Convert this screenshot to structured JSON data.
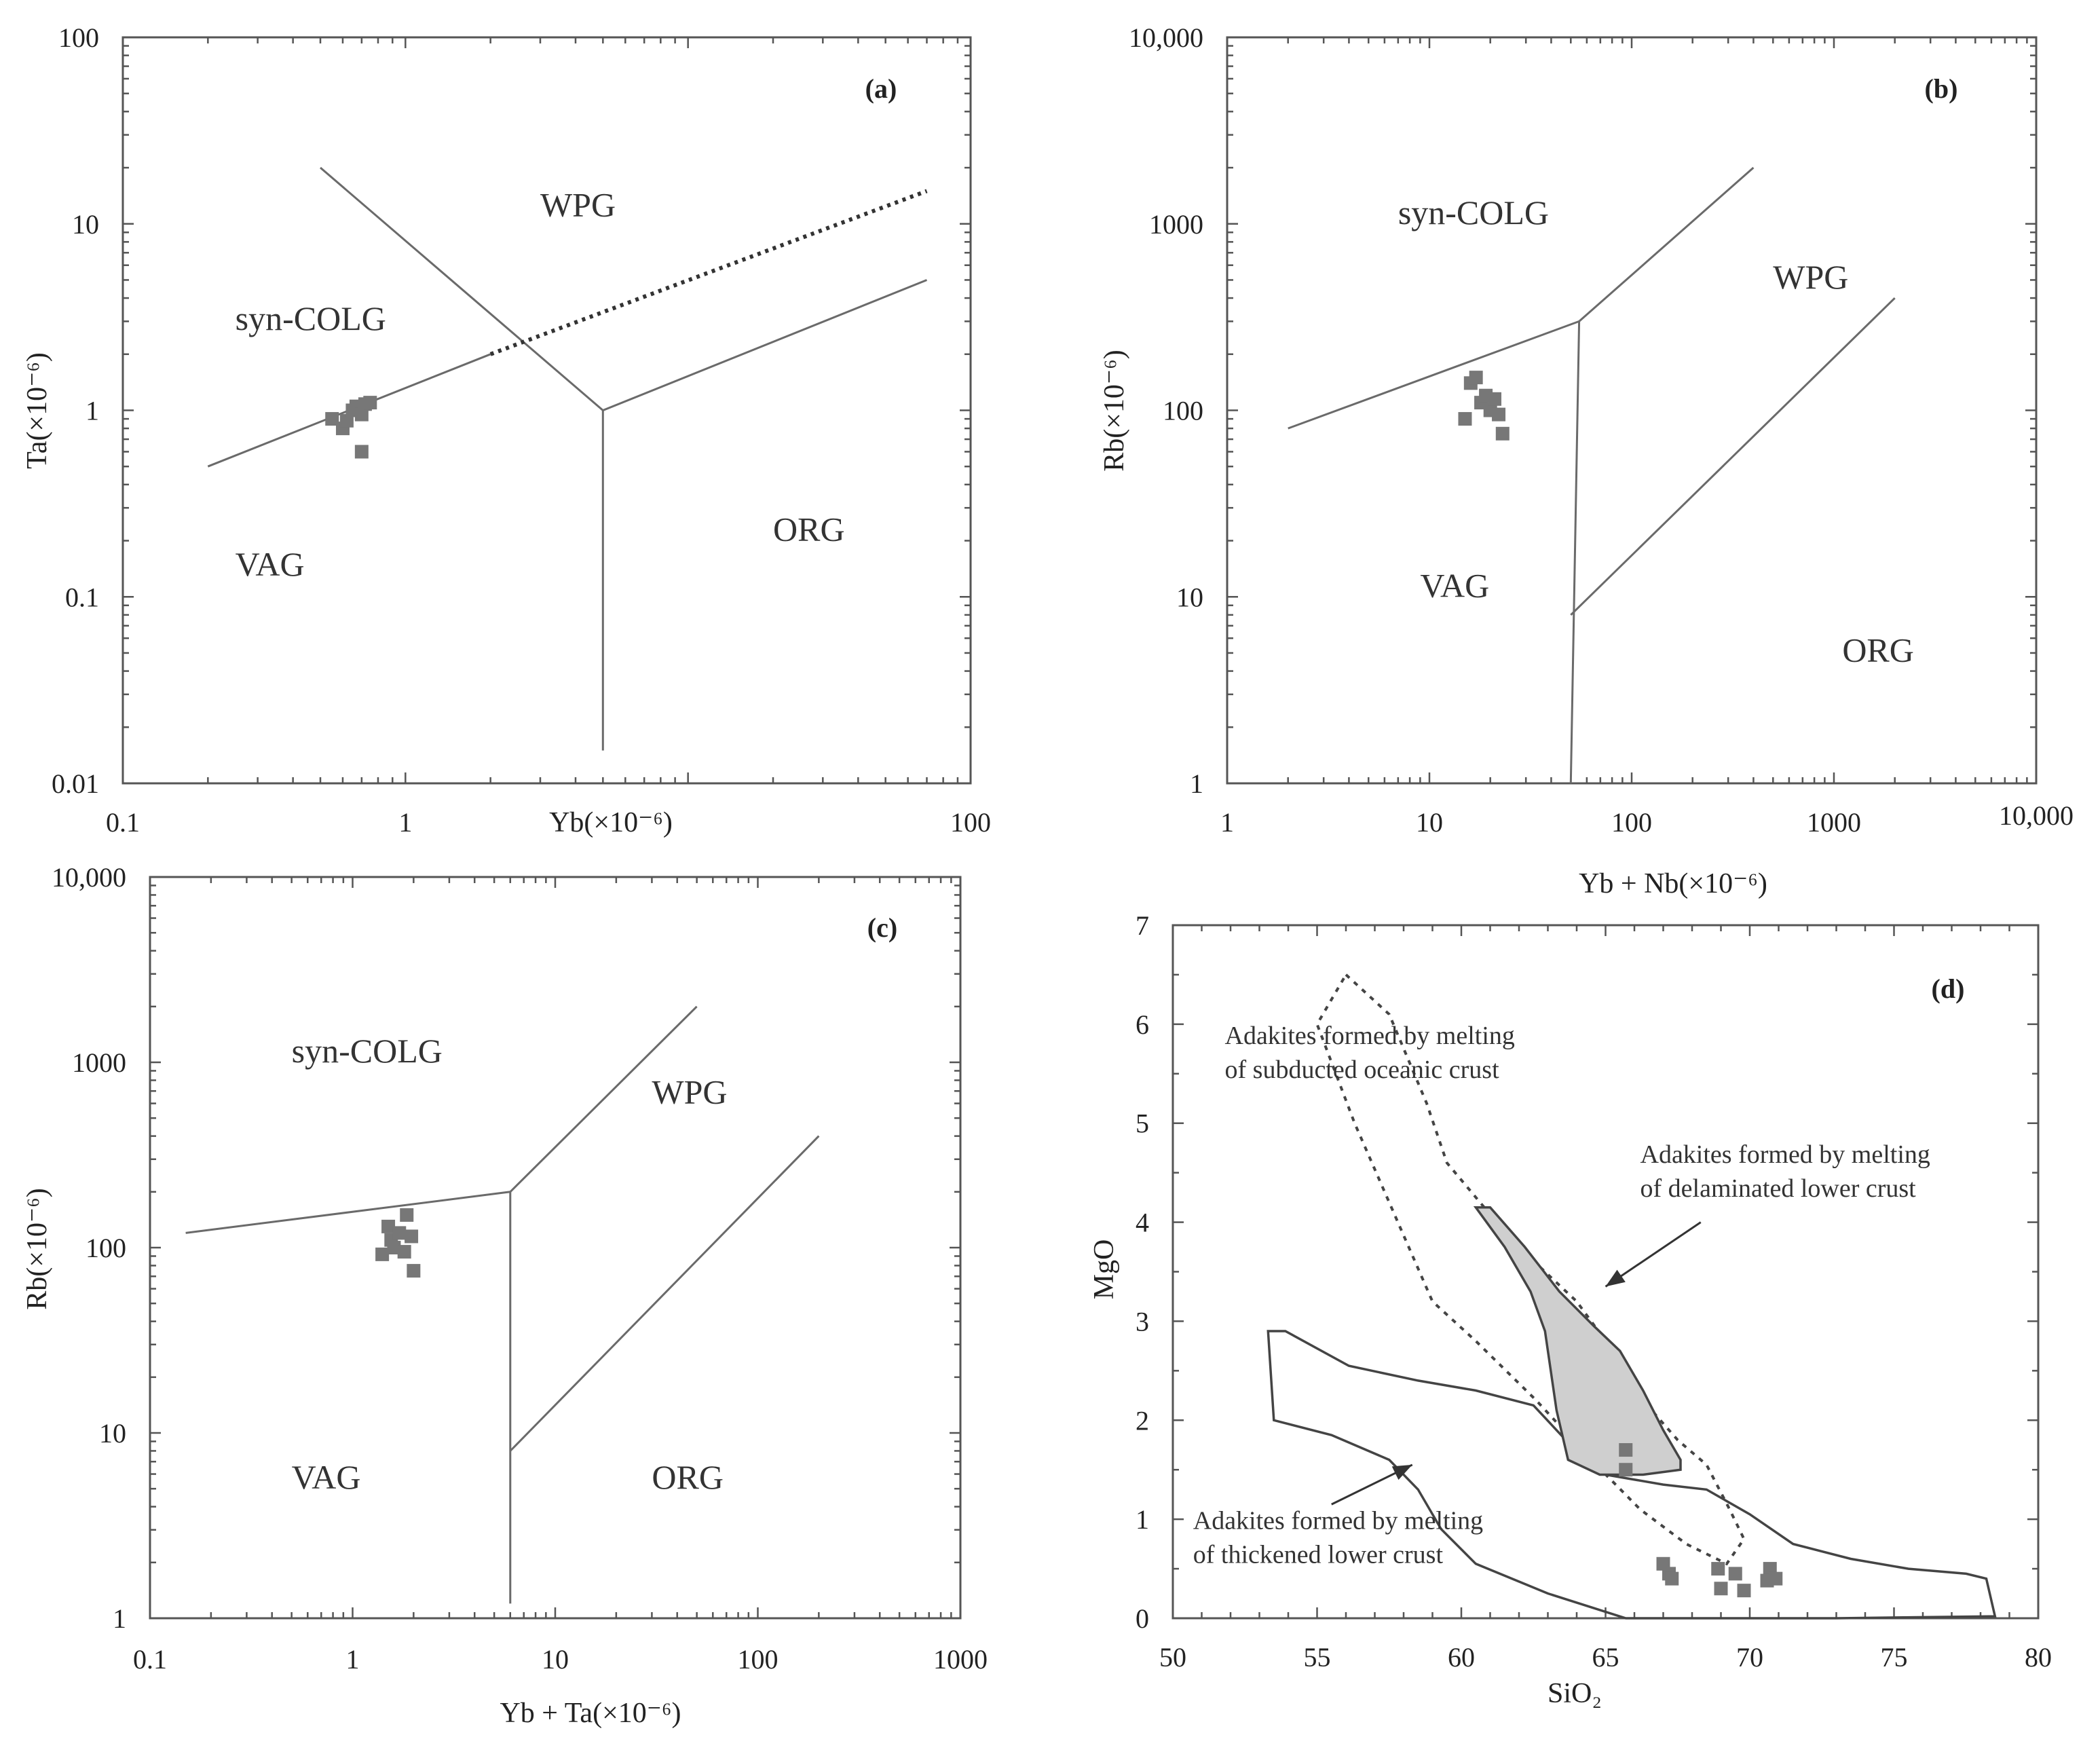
{
  "chart_data": [
    {
      "id": "a",
      "type": "scatter",
      "panel_label": "(a)",
      "xlabel": "Yb(×10⁻⁶)",
      "ylabel": "Ta(×10⁻⁶)",
      "xscale": "log",
      "yscale": "log",
      "xlim": [
        0.1,
        100
      ],
      "ylim": [
        0.01,
        100
      ],
      "x_ticks": [
        0.1,
        1,
        10,
        100
      ],
      "x_tick_labels": [
        "0.1",
        "1",
        "",
        "100"
      ],
      "y_ticks": [
        0.01,
        0.1,
        1,
        10,
        100
      ],
      "y_tick_labels": [
        "0.01",
        "0.1",
        "1",
        "10",
        "100"
      ],
      "fields": [
        {
          "label": "WPG",
          "x": 3.0,
          "y": 11
        },
        {
          "label": "syn-COLG",
          "x": 0.25,
          "y": 2.7
        },
        {
          "label": "VAG",
          "x": 0.25,
          "y": 0.13
        },
        {
          "label": "ORG",
          "x": 20,
          "y": 0.2
        }
      ],
      "boundaries": [
        {
          "style": "solid",
          "points": [
            [
              0.2,
              0.5
            ],
            [
              2.0,
              2.0
            ]
          ]
        },
        {
          "style": "solid",
          "points": [
            [
              0.5,
              20
            ],
            [
              5.0,
              1.0
            ]
          ]
        },
        {
          "style": "solid",
          "points": [
            [
              5.0,
              1.0
            ],
            [
              70,
              5.0
            ]
          ]
        },
        {
          "style": "solid",
          "points": [
            [
              5.0,
              1.0
            ],
            [
              5.0,
              0.015
            ]
          ]
        },
        {
          "style": "dotted",
          "points": [
            [
              2.0,
              2.0
            ],
            [
              70,
              15
            ]
          ]
        }
      ],
      "samples": [
        {
          "x": 0.55,
          "y": 0.9
        },
        {
          "x": 0.6,
          "y": 0.8
        },
        {
          "x": 0.62,
          "y": 0.88
        },
        {
          "x": 0.65,
          "y": 1.0
        },
        {
          "x": 0.67,
          "y": 1.05
        },
        {
          "x": 0.7,
          "y": 0.95
        },
        {
          "x": 0.72,
          "y": 1.08
        },
        {
          "x": 0.75,
          "y": 1.1
        },
        {
          "x": 0.7,
          "y": 0.6
        }
      ]
    },
    {
      "id": "b",
      "type": "scatter",
      "panel_label": "(b)",
      "xlabel": "Yb + Nb(×10⁻⁶)",
      "ylabel": "Rb(×10⁻⁶)",
      "xscale": "log",
      "yscale": "log",
      "xlim": [
        1,
        10000
      ],
      "ylim": [
        1,
        10000
      ],
      "x_ticks": [
        1,
        10,
        100,
        1000,
        10000
      ],
      "x_tick_labels": [
        "1",
        "10",
        "100",
        "1000",
        "10,000"
      ],
      "y_ticks": [
        1,
        10,
        100,
        1000,
        10000
      ],
      "y_tick_labels": [
        "1",
        "10",
        "100",
        "1000",
        "10,000"
      ],
      "fields": [
        {
          "label": "syn-COLG",
          "x": 7,
          "y": 1000
        },
        {
          "label": "WPG",
          "x": 500,
          "y": 450
        },
        {
          "label": "VAG",
          "x": 9,
          "y": 10
        },
        {
          "label": "ORG",
          "x": 1100,
          "y": 4.5
        }
      ],
      "boundaries": [
        {
          "style": "solid",
          "points": [
            [
              2,
              80
            ],
            [
              55,
              300
            ]
          ]
        },
        {
          "style": "solid",
          "points": [
            [
              55,
              300
            ],
            [
              400,
              2000
            ]
          ]
        },
        {
          "style": "solid",
          "points": [
            [
              55,
              300
            ],
            [
              50,
              1
            ]
          ]
        },
        {
          "style": "solid",
          "points": [
            [
              50,
              8
            ],
            [
              2000,
              400
            ]
          ]
        }
      ],
      "samples": [
        {
          "x": 15,
          "y": 90
        },
        {
          "x": 16,
          "y": 140
        },
        {
          "x": 17,
          "y": 150
        },
        {
          "x": 18,
          "y": 110
        },
        {
          "x": 19,
          "y": 120
        },
        {
          "x": 20,
          "y": 100
        },
        {
          "x": 21,
          "y": 115
        },
        {
          "x": 22,
          "y": 95
        },
        {
          "x": 23,
          "y": 75
        }
      ]
    },
    {
      "id": "c",
      "type": "scatter",
      "panel_label": "(c)",
      "xlabel": "Yb + Ta(×10⁻⁶)",
      "ylabel": "Rb(×10⁻⁶)",
      "xscale": "log",
      "yscale": "log",
      "xlim": [
        0.1,
        1000
      ],
      "ylim": [
        1,
        10000
      ],
      "x_ticks": [
        0.1,
        1,
        10,
        100,
        1000
      ],
      "x_tick_labels": [
        "0.1",
        "1",
        "10",
        "100",
        "1000"
      ],
      "y_ticks": [
        1,
        10,
        100,
        1000,
        10000
      ],
      "y_tick_labels": [
        "1",
        "10",
        "100",
        "1000",
        "10,000"
      ],
      "fields": [
        {
          "label": "syn-COLG",
          "x": 0.5,
          "y": 1000
        },
        {
          "label": "WPG",
          "x": 30,
          "y": 600
        },
        {
          "label": "VAG",
          "x": 0.5,
          "y": 5
        },
        {
          "label": "ORG",
          "x": 30,
          "y": 5
        }
      ],
      "boundaries": [
        {
          "style": "solid",
          "points": [
            [
              0.15,
              120
            ],
            [
              6,
              200
            ]
          ]
        },
        {
          "style": "solid",
          "points": [
            [
              6,
              200
            ],
            [
              50,
              2000
            ]
          ]
        },
        {
          "style": "solid",
          "points": [
            [
              6,
              200
            ],
            [
              6,
              1.2
            ]
          ]
        },
        {
          "style": "solid",
          "points": [
            [
              6,
              8
            ],
            [
              200,
              400
            ]
          ]
        }
      ],
      "samples": [
        {
          "x": 1.4,
          "y": 92
        },
        {
          "x": 1.5,
          "y": 130
        },
        {
          "x": 1.55,
          "y": 110
        },
        {
          "x": 1.6,
          "y": 100
        },
        {
          "x": 1.7,
          "y": 120
        },
        {
          "x": 1.8,
          "y": 95
        },
        {
          "x": 1.85,
          "y": 150
        },
        {
          "x": 1.95,
          "y": 115
        },
        {
          "x": 2.0,
          "y": 75
        }
      ]
    },
    {
      "id": "d",
      "type": "scatter",
      "panel_label": "(d)",
      "xlabel": "SiO₂",
      "ylabel": "MgO",
      "xscale": "linear",
      "yscale": "linear",
      "xlim": [
        50,
        80
      ],
      "ylim": [
        0,
        7
      ],
      "x_ticks": [
        50,
        55,
        60,
        65,
        70,
        75,
        80
      ],
      "x_tick_labels": [
        "50",
        "55",
        "60",
        "65",
        "70",
        "75",
        "80"
      ],
      "y_ticks": [
        0,
        1,
        2,
        3,
        4,
        5,
        6,
        7
      ],
      "y_tick_labels": [
        "0",
        "1",
        "2",
        "3",
        "4",
        "5",
        "6",
        "7"
      ],
      "annotations": [
        {
          "lines": [
            "Adakites formed by melting",
            "of subducted oceanic crust"
          ],
          "x": 51.8,
          "y": 5.8
        },
        {
          "lines": [
            "Adakites formed by melting",
            "of delaminated lower crust"
          ],
          "x": 66.2,
          "y": 4.6
        },
        {
          "lines": [
            "Adakites formed by melting",
            "of thickened lower crust"
          ],
          "x": 50.7,
          "y": 0.9
        }
      ],
      "arrows": [
        {
          "from": [
            68.3,
            4.0
          ],
          "to": [
            65.0,
            3.35
          ]
        },
        {
          "from": [
            55.5,
            1.15
          ],
          "to": [
            58.3,
            1.55
          ]
        }
      ],
      "regions": [
        {
          "name": "subducted-oceanic-crust",
          "style": "dotted",
          "points": [
            [
              56.0,
              6.5
            ],
            [
              57.5,
              6.1
            ],
            [
              58.8,
              5.2
            ],
            [
              59.5,
              4.6
            ],
            [
              61.8,
              3.8
            ],
            [
              64.0,
              3.2
            ],
            [
              65.5,
              2.6
            ],
            [
              66.6,
              2.1
            ],
            [
              67.5,
              1.8
            ],
            [
              68.5,
              1.55
            ],
            [
              69.3,
              1.1
            ],
            [
              69.8,
              0.8
            ],
            [
              69.2,
              0.55
            ],
            [
              67.8,
              0.75
            ],
            [
              66.2,
              1.1
            ],
            [
              64.5,
              1.6
            ],
            [
              62.6,
              2.2
            ],
            [
              60.5,
              2.8
            ],
            [
              59.0,
              3.2
            ],
            [
              57.5,
              4.2
            ],
            [
              56.3,
              5.0
            ],
            [
              55.0,
              6.0
            ],
            [
              56.0,
              6.5
            ]
          ]
        },
        {
          "name": "thickened-lower-crust",
          "style": "solid",
          "points": [
            [
              53.3,
              2.9
            ],
            [
              53.9,
              2.9
            ],
            [
              56.1,
              2.55
            ],
            [
              58.5,
              2.4
            ],
            [
              60.5,
              2.3
            ],
            [
              62.5,
              2.15
            ],
            [
              64.1,
              1.65
            ],
            [
              65.0,
              1.45
            ],
            [
              67.0,
              1.35
            ],
            [
              68.5,
              1.3
            ],
            [
              70.0,
              1.05
            ],
            [
              71.5,
              0.75
            ],
            [
              73.5,
              0.6
            ],
            [
              75.5,
              0.5
            ],
            [
              77.5,
              0.45
            ],
            [
              78.2,
              0.4
            ],
            [
              78.5,
              0.02
            ],
            [
              73.0,
              0.0
            ],
            [
              65.7,
              0.0
            ],
            [
              63.0,
              0.25
            ],
            [
              60.5,
              0.55
            ],
            [
              59.3,
              0.9
            ],
            [
              58.5,
              1.3
            ],
            [
              57.5,
              1.6
            ],
            [
              55.5,
              1.85
            ],
            [
              53.5,
              2.0
            ],
            [
              53.3,
              2.9
            ]
          ]
        },
        {
          "name": "delaminated-lower-crust",
          "style": "filled",
          "points": [
            [
              60.5,
              4.15
            ],
            [
              61.0,
              4.15
            ],
            [
              62.2,
              3.75
            ],
            [
              63.4,
              3.3
            ],
            [
              64.6,
              2.95
            ],
            [
              65.5,
              2.7
            ],
            [
              66.3,
              2.3
            ],
            [
              67.0,
              1.9
            ],
            [
              67.6,
              1.6
            ],
            [
              67.6,
              1.5
            ],
            [
              66.3,
              1.45
            ],
            [
              64.8,
              1.45
            ],
            [
              63.7,
              1.6
            ],
            [
              63.3,
              2.1
            ],
            [
              63.1,
              2.5
            ],
            [
              62.9,
              2.9
            ],
            [
              62.4,
              3.3
            ],
            [
              61.5,
              3.75
            ],
            [
              60.5,
              4.15
            ]
          ]
        }
      ],
      "samples": [
        {
          "x": 65.7,
          "y": 1.7
        },
        {
          "x": 65.7,
          "y": 1.5
        },
        {
          "x": 67.0,
          "y": 0.55
        },
        {
          "x": 67.2,
          "y": 0.45
        },
        {
          "x": 67.3,
          "y": 0.4
        },
        {
          "x": 68.9,
          "y": 0.5
        },
        {
          "x": 69.0,
          "y": 0.3
        },
        {
          "x": 69.5,
          "y": 0.45
        },
        {
          "x": 69.8,
          "y": 0.28
        },
        {
          "x": 70.7,
          "y": 0.5
        },
        {
          "x": 70.6,
          "y": 0.38
        },
        {
          "x": 70.9,
          "y": 0.4
        }
      ]
    }
  ]
}
